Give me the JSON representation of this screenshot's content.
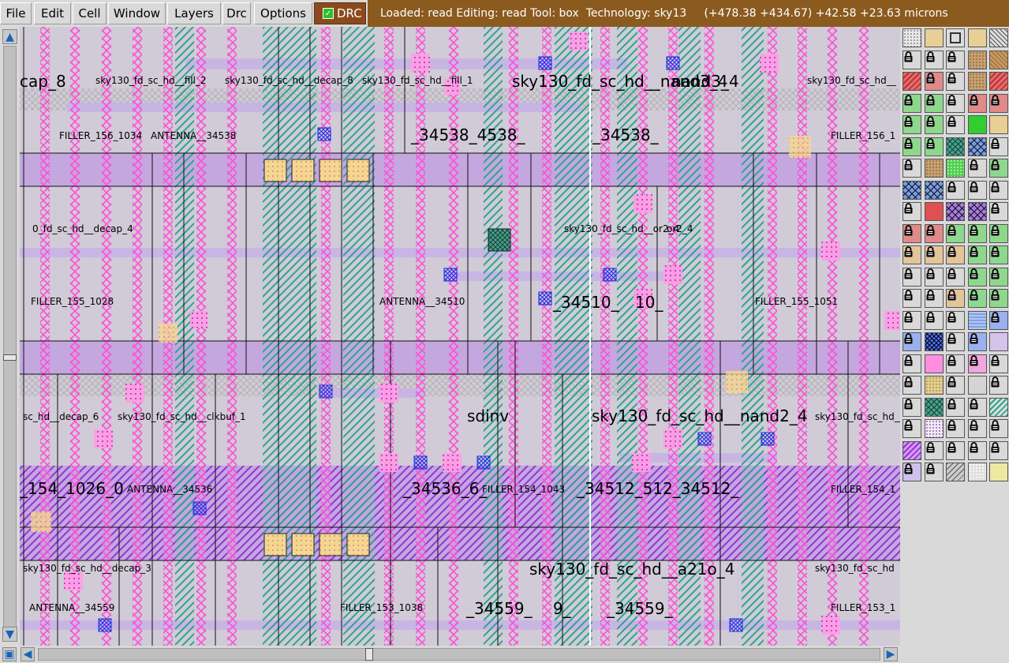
{
  "menubar": {
    "items": [
      "File",
      "Edit",
      "Cell",
      "Window",
      "Layers",
      "Drc",
      "Options"
    ],
    "drc_toggle": {
      "label": "DRC",
      "checked": true
    }
  },
  "status": {
    "loaded": "read",
    "editing": "read",
    "tool": "box",
    "technology": "sky13",
    "coords": "(+478.38 +434.67) +42.58 +23.63 microns"
  },
  "status_text": "Loaded: read Editing: read Tool: box  Technology: sky13     (+478.38 +434.67) +42.58 +23.63 microns",
  "layout": {
    "labels_large": [
      {
        "text": "cap_8"
      },
      {
        "text": "sky130_fd_sc_hd__nand3_4"
      },
      {
        "text": "nand3_4"
      },
      {
        "text": "_34538_4538_"
      },
      {
        "text": "_34538_"
      },
      {
        "text": "_34510_"
      },
      {
        "text": "10_"
      },
      {
        "text": "sdinv"
      },
      {
        "text": "sky130_fd_sc_hd__nand2_4"
      },
      {
        "text": "_154_1026_0"
      },
      {
        "text": "_34536_6_"
      },
      {
        "text": "_34512_512_34512_"
      },
      {
        "text": "sky130_fd_sc_hd__a21o_4"
      },
      {
        "text": "_34559_"
      },
      {
        "text": "9_"
      },
      {
        "text": "_34559_"
      }
    ],
    "labels_small": [
      {
        "text": "sky130_fd_sc_hd__fill_2"
      },
      {
        "text": "sky130_fd_sc_hd__fill_1"
      },
      {
        "text": "sky130_fd_sc_hd__decap_8"
      },
      {
        "text": "sky130_fd_sc_hd__"
      },
      {
        "text": "FILLER_156_1"
      },
      {
        "text": "FILLER_156_1034"
      },
      {
        "text": "ANTENNA__34538"
      },
      {
        "text": "0_fd_sc_hd__decap_4"
      },
      {
        "text": "sky130_fd_sc_hd__or2_4"
      },
      {
        "text": "or2_4"
      },
      {
        "text": "FILLER_155_1028"
      },
      {
        "text": "FILLER_155_1051"
      },
      {
        "text": "ANTENNA__34510"
      },
      {
        "text": "sc_hd__decap_6"
      },
      {
        "text": "sky130_fd_sc_hd__clkbuf_1"
      },
      {
        "text": "sky130_fd_sc_hd__"
      },
      {
        "text": "FILLER_154_1"
      },
      {
        "text": "FILLER_154_1043"
      },
      {
        "text": "ANTENNA__34536"
      },
      {
        "text": "sky130_fd_sc_hd__decap_3"
      },
      {
        "text": "sky130_fd_sc_hd"
      },
      {
        "text": "FILLER_153_1"
      },
      {
        "text": "FILLER_153_1038"
      },
      {
        "text": "ANTENNA__34559"
      }
    ]
  },
  "palette": {
    "columns": 5,
    "rows": 21,
    "cells": [
      "dots-grey",
      "tan-solid",
      "outline-box",
      "tan-solid",
      "hatch-black",
      "lock",
      "lock",
      "lock",
      "tan-stipple",
      "hatch-brown",
      "hatch-red",
      "lock-red",
      "lock",
      "tan-stipple",
      "hatch-red",
      "lock-green",
      "lock-green",
      "lock",
      "lock-red",
      "lock-red",
      "lock-green",
      "lock-green",
      "lock",
      "green-solid",
      "tan-solid",
      "lock-green",
      "lock-green",
      "cross-teal",
      "cross-blue",
      "lock",
      "lock",
      "tan-stipple",
      "green-dots",
      "lock",
      "lock-green",
      "cross-blue",
      "cross-blue",
      "lock",
      "lock",
      "lock",
      "lock",
      "red-solid",
      "cross-purple",
      "cross-purple",
      "lock",
      "lock-red",
      "lock-red",
      "lock-green",
      "lock-green",
      "lock-green",
      "lock-tan",
      "lock-tan",
      "lock-tan",
      "lock-green",
      "lock-green",
      "lock",
      "lock",
      "lock",
      "lock-green",
      "lock-green",
      "lock",
      "lock",
      "lock-tan",
      "lock-green",
      "lock-green",
      "lock",
      "lock",
      "lock",
      "wave-blue",
      "lock-blue",
      "lock-blue",
      "cross-blue-dense",
      "lock",
      "lock-blue",
      "lavender-solid",
      "lock",
      "pink-solid",
      "lock",
      "lock-pink",
      "lock",
      "lock",
      "yellow-stipple",
      "lock",
      "grey-solid",
      "lock",
      "lock",
      "cross-teal",
      "lock",
      "lock",
      "hatch-teal",
      "lock",
      "dots-purple",
      "lock",
      "lock",
      "lock",
      "hatch-purple",
      "lock",
      "lock",
      "lock",
      "lock",
      "lock-lavender",
      "lock",
      "hatch-grey",
      "grey-dots",
      "yellow-pale"
    ]
  }
}
